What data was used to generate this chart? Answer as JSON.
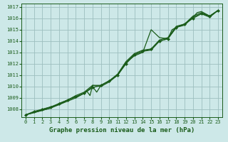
{
  "title": "Graphe pression niveau de la mer (hPa)",
  "bg_color": "#cde8e8",
  "plot_bg_color": "#cde8e8",
  "grid_color": "#9dbfbf",
  "line_color": "#1a5c1a",
  "marker_color": "#1a5c1a",
  "xlim": [
    -0.5,
    23.5
  ],
  "ylim": [
    1007.3,
    1017.3
  ],
  "yticks": [
    1008,
    1009,
    1010,
    1011,
    1012,
    1013,
    1014,
    1015,
    1016,
    1017
  ],
  "xticks": [
    0,
    1,
    2,
    3,
    4,
    5,
    6,
    7,
    8,
    9,
    10,
    11,
    12,
    13,
    14,
    15,
    16,
    17,
    18,
    19,
    20,
    21,
    22,
    23
  ],
  "series": [
    {
      "x": [
        0,
        1,
        2,
        3,
        4,
        5,
        6,
        7,
        8,
        9,
        10,
        11,
        12,
        13,
        14,
        15,
        16,
        17,
        18,
        19,
        20,
        21,
        22,
        23
      ],
      "y": [
        1007.5,
        1007.8,
        1008.0,
        1008.2,
        1008.5,
        1008.8,
        1009.1,
        1009.4,
        1009.9,
        1010.1,
        1010.5,
        1011.0,
        1012.0,
        1012.8,
        1013.1,
        1013.3,
        1014.0,
        1014.2,
        1015.2,
        1015.5,
        1016.0,
        1016.4,
        1016.2,
        1016.7
      ],
      "has_markers": true,
      "lw": 0.9
    },
    {
      "x": [
        0,
        3,
        4,
        5,
        6,
        7,
        7.5,
        8,
        8.5,
        9,
        10,
        11,
        12,
        13,
        14,
        15,
        16,
        17,
        18,
        19,
        20,
        21,
        22,
        23
      ],
      "y": [
        1007.5,
        1008.2,
        1008.4,
        1008.8,
        1009.1,
        1009.4,
        1009.7,
        1010.0,
        1009.5,
        1010.1,
        1010.5,
        1011.0,
        1012.1,
        1012.8,
        1013.1,
        1013.2,
        1014.0,
        1014.2,
        1015.2,
        1015.4,
        1016.1,
        1016.4,
        1016.1,
        1016.7
      ],
      "has_markers": false,
      "lw": 0.9
    },
    {
      "x": [
        0,
        3,
        4,
        5,
        6,
        7,
        7.3,
        7.7,
        8,
        9,
        10,
        11,
        12,
        13,
        14,
        15,
        16,
        17,
        17.5,
        18,
        19,
        20,
        21,
        22,
        23
      ],
      "y": [
        1007.5,
        1008.1,
        1008.4,
        1008.7,
        1009.0,
        1009.4,
        1009.6,
        1009.2,
        1010.1,
        1010.0,
        1010.4,
        1011.0,
        1012.1,
        1012.7,
        1013.0,
        1015.0,
        1014.3,
        1014.2,
        1015.0,
        1015.2,
        1015.5,
        1016.2,
        1016.5,
        1016.2,
        1016.7
      ],
      "has_markers": false,
      "lw": 0.9
    },
    {
      "x": [
        0,
        3,
        4,
        5,
        6,
        7,
        8,
        9,
        10,
        11,
        12,
        13,
        14,
        15,
        16,
        17,
        18,
        19,
        20,
        20.5,
        21,
        22,
        23
      ],
      "y": [
        1007.5,
        1008.1,
        1008.5,
        1008.8,
        1009.2,
        1009.5,
        1010.1,
        1010.1,
        1010.5,
        1011.1,
        1012.2,
        1012.9,
        1013.2,
        1013.3,
        1014.1,
        1014.3,
        1015.3,
        1015.5,
        1016.1,
        1016.5,
        1016.6,
        1016.2,
        1016.7
      ],
      "has_markers": false,
      "lw": 0.9
    }
  ]
}
